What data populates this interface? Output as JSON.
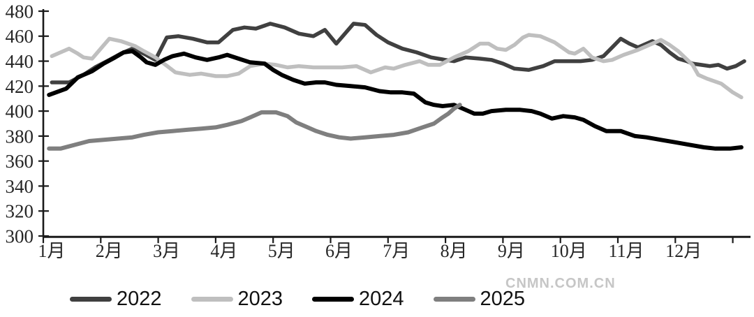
{
  "watermark": "CNMN.COM.CN",
  "colors": {
    "axis": "#1a1a1a",
    "tick_label": "#262626",
    "watermark": "#c6c6c6",
    "series_2022": "#404040",
    "series_2023": "#bfbfbf",
    "series_2024": "#000000",
    "series_2025": "#7f7f7f"
  },
  "chart_data": {
    "type": "line",
    "title": "",
    "xlabel": "",
    "ylabel": "",
    "ylim": [
      300,
      480
    ],
    "ytick_interval": 20,
    "yticks": [
      "480",
      "460",
      "440",
      "420",
      "400",
      "380",
      "360",
      "340",
      "320",
      "300"
    ],
    "ytick_values": [
      480,
      460,
      440,
      420,
      400,
      380,
      360,
      340,
      320,
      300
    ],
    "xtick_labels": [
      "1月",
      "2月",
      "3月",
      "4月",
      "5月",
      "6月",
      "7月",
      "8月",
      "9月",
      "10月",
      "11月",
      "12月"
    ],
    "grid": false,
    "legend_position": "bottom",
    "x_unit": "month (1=Jan tick, 13=year end), weekly points",
    "series": [
      {
        "name": "2022",
        "color": "#404040",
        "width": 5.5,
        "points": [
          [
            1.15,
            423
          ],
          [
            1.45,
            423
          ],
          [
            1.7,
            429
          ],
          [
            1.9,
            435
          ],
          [
            2.15,
            441
          ],
          [
            2.35,
            446
          ],
          [
            2.55,
            450
          ],
          [
            2.75,
            446
          ],
          [
            2.95,
            441
          ],
          [
            3.15,
            459
          ],
          [
            3.35,
            460
          ],
          [
            3.6,
            458
          ],
          [
            3.85,
            455
          ],
          [
            4.05,
            455
          ],
          [
            4.3,
            465
          ],
          [
            4.5,
            467
          ],
          [
            4.7,
            466
          ],
          [
            4.95,
            470
          ],
          [
            5.2,
            467
          ],
          [
            5.45,
            462
          ],
          [
            5.7,
            460
          ],
          [
            5.9,
            465
          ],
          [
            6.1,
            454
          ],
          [
            6.4,
            470
          ],
          [
            6.6,
            469
          ],
          [
            6.8,
            461
          ],
          [
            7.0,
            455
          ],
          [
            7.25,
            450
          ],
          [
            7.5,
            447
          ],
          [
            7.75,
            443
          ],
          [
            8.0,
            441
          ],
          [
            8.15,
            440
          ],
          [
            8.35,
            443
          ],
          [
            8.6,
            442
          ],
          [
            8.8,
            441
          ],
          [
            9.0,
            438
          ],
          [
            9.2,
            434
          ],
          [
            9.45,
            433
          ],
          [
            9.7,
            436
          ],
          [
            9.9,
            440
          ],
          [
            10.1,
            440
          ],
          [
            10.35,
            440
          ],
          [
            10.55,
            441
          ],
          [
            10.75,
            444
          ],
          [
            10.9,
            451
          ],
          [
            11.05,
            458
          ],
          [
            11.2,
            454
          ],
          [
            11.35,
            451
          ],
          [
            11.5,
            454
          ],
          [
            11.6,
            456
          ],
          [
            11.75,
            453
          ],
          [
            11.9,
            447
          ],
          [
            12.05,
            442
          ],
          [
            12.2,
            440
          ],
          [
            12.3,
            438
          ],
          [
            12.45,
            437
          ],
          [
            12.6,
            436
          ],
          [
            12.75,
            437
          ],
          [
            12.9,
            434
          ],
          [
            13.05,
            436
          ],
          [
            13.2,
            440
          ]
        ]
      },
      {
        "name": "2023",
        "color": "#bfbfbf",
        "width": 5.5,
        "points": [
          [
            1.15,
            444
          ],
          [
            1.3,
            447
          ],
          [
            1.45,
            450
          ],
          [
            1.6,
            446
          ],
          [
            1.7,
            443
          ],
          [
            1.85,
            442
          ],
          [
            2.0,
            450
          ],
          [
            2.15,
            458
          ],
          [
            2.35,
            456
          ],
          [
            2.6,
            452
          ],
          [
            2.75,
            448
          ],
          [
            2.95,
            443
          ],
          [
            3.1,
            438
          ],
          [
            3.3,
            431
          ],
          [
            3.55,
            429
          ],
          [
            3.75,
            430
          ],
          [
            4.0,
            428
          ],
          [
            4.2,
            428
          ],
          [
            4.4,
            430
          ],
          [
            4.6,
            436
          ],
          [
            4.85,
            438
          ],
          [
            5.05,
            437
          ],
          [
            5.25,
            435
          ],
          [
            5.45,
            436
          ],
          [
            5.7,
            435
          ],
          [
            5.95,
            435
          ],
          [
            6.2,
            435
          ],
          [
            6.45,
            436
          ],
          [
            6.7,
            431
          ],
          [
            6.95,
            435
          ],
          [
            7.1,
            434
          ],
          [
            7.3,
            437
          ],
          [
            7.55,
            440
          ],
          [
            7.7,
            437
          ],
          [
            7.9,
            437
          ],
          [
            8.15,
            443
          ],
          [
            8.4,
            448
          ],
          [
            8.6,
            454
          ],
          [
            8.75,
            454
          ],
          [
            8.9,
            450
          ],
          [
            9.05,
            449
          ],
          [
            9.2,
            453
          ],
          [
            9.35,
            459
          ],
          [
            9.45,
            461
          ],
          [
            9.65,
            460
          ],
          [
            9.9,
            455
          ],
          [
            10.15,
            447
          ],
          [
            10.25,
            446
          ],
          [
            10.4,
            450
          ],
          [
            10.55,
            443
          ],
          [
            10.75,
            440
          ],
          [
            10.9,
            441
          ],
          [
            11.1,
            445
          ],
          [
            11.35,
            449
          ],
          [
            11.5,
            452
          ],
          [
            11.75,
            457
          ],
          [
            11.9,
            453
          ],
          [
            12.05,
            448
          ],
          [
            12.3,
            437
          ],
          [
            12.4,
            429
          ],
          [
            12.55,
            426
          ],
          [
            12.8,
            422
          ],
          [
            13.0,
            415
          ],
          [
            13.15,
            411
          ]
        ]
      },
      {
        "name": "2024",
        "color": "#000000",
        "width": 6,
        "points": [
          [
            1.1,
            413
          ],
          [
            1.4,
            418
          ],
          [
            1.6,
            427
          ],
          [
            1.85,
            432
          ],
          [
            2.05,
            438
          ],
          [
            2.25,
            443
          ],
          [
            2.4,
            447
          ],
          [
            2.55,
            448
          ],
          [
            2.7,
            443
          ],
          [
            2.8,
            439
          ],
          [
            2.95,
            437
          ],
          [
            3.1,
            441
          ],
          [
            3.25,
            444
          ],
          [
            3.45,
            446
          ],
          [
            3.65,
            443
          ],
          [
            3.85,
            441
          ],
          [
            4.05,
            443
          ],
          [
            4.2,
            445
          ],
          [
            4.4,
            442
          ],
          [
            4.6,
            439
          ],
          [
            4.85,
            438
          ],
          [
            5.0,
            433
          ],
          [
            5.15,
            429
          ],
          [
            5.35,
            425
          ],
          [
            5.55,
            422
          ],
          [
            5.75,
            423
          ],
          [
            5.9,
            423
          ],
          [
            6.1,
            421
          ],
          [
            6.35,
            420
          ],
          [
            6.6,
            419
          ],
          [
            6.85,
            416
          ],
          [
            7.05,
            415
          ],
          [
            7.25,
            415
          ],
          [
            7.45,
            414
          ],
          [
            7.65,
            407
          ],
          [
            7.8,
            405
          ],
          [
            7.95,
            404
          ],
          [
            8.15,
            405
          ],
          [
            8.3,
            402
          ],
          [
            8.5,
            398
          ],
          [
            8.65,
            398
          ],
          [
            8.8,
            400
          ],
          [
            9.05,
            401
          ],
          [
            9.3,
            401
          ],
          [
            9.5,
            400
          ],
          [
            9.65,
            398
          ],
          [
            9.85,
            394
          ],
          [
            10.05,
            396
          ],
          [
            10.25,
            395
          ],
          [
            10.4,
            393
          ],
          [
            10.6,
            388
          ],
          [
            10.8,
            384
          ],
          [
            11.05,
            384
          ],
          [
            11.3,
            380
          ],
          [
            11.5,
            379
          ],
          [
            11.75,
            377
          ],
          [
            12.0,
            375
          ],
          [
            12.25,
            373
          ],
          [
            12.5,
            371
          ],
          [
            12.7,
            370
          ],
          [
            12.95,
            370
          ],
          [
            13.15,
            371
          ]
        ]
      },
      {
        "name": "2025",
        "color": "#7f7f7f",
        "width": 6,
        "points": [
          [
            1.1,
            370
          ],
          [
            1.3,
            370
          ],
          [
            1.55,
            373
          ],
          [
            1.8,
            376
          ],
          [
            2.05,
            377
          ],
          [
            2.3,
            378
          ],
          [
            2.55,
            379
          ],
          [
            2.75,
            381
          ],
          [
            3.0,
            383
          ],
          [
            3.25,
            384
          ],
          [
            3.5,
            385
          ],
          [
            3.75,
            386
          ],
          [
            4.0,
            387
          ],
          [
            4.2,
            389
          ],
          [
            4.45,
            392
          ],
          [
            4.6,
            395
          ],
          [
            4.8,
            399
          ],
          [
            5.05,
            399
          ],
          [
            5.25,
            396
          ],
          [
            5.4,
            391
          ],
          [
            5.6,
            387
          ],
          [
            5.75,
            384
          ],
          [
            5.95,
            381
          ],
          [
            6.15,
            379
          ],
          [
            6.35,
            378
          ],
          [
            6.6,
            379
          ],
          [
            6.85,
            380
          ],
          [
            7.1,
            381
          ],
          [
            7.35,
            383
          ],
          [
            7.6,
            387
          ],
          [
            7.8,
            390
          ],
          [
            7.95,
            395
          ],
          [
            8.05,
            398
          ],
          [
            8.15,
            402
          ],
          [
            8.25,
            405
          ]
        ]
      }
    ]
  },
  "legend": {
    "items": [
      {
        "label": "2022"
      },
      {
        "label": "2023"
      },
      {
        "label": "2024"
      },
      {
        "label": "2025"
      }
    ]
  }
}
